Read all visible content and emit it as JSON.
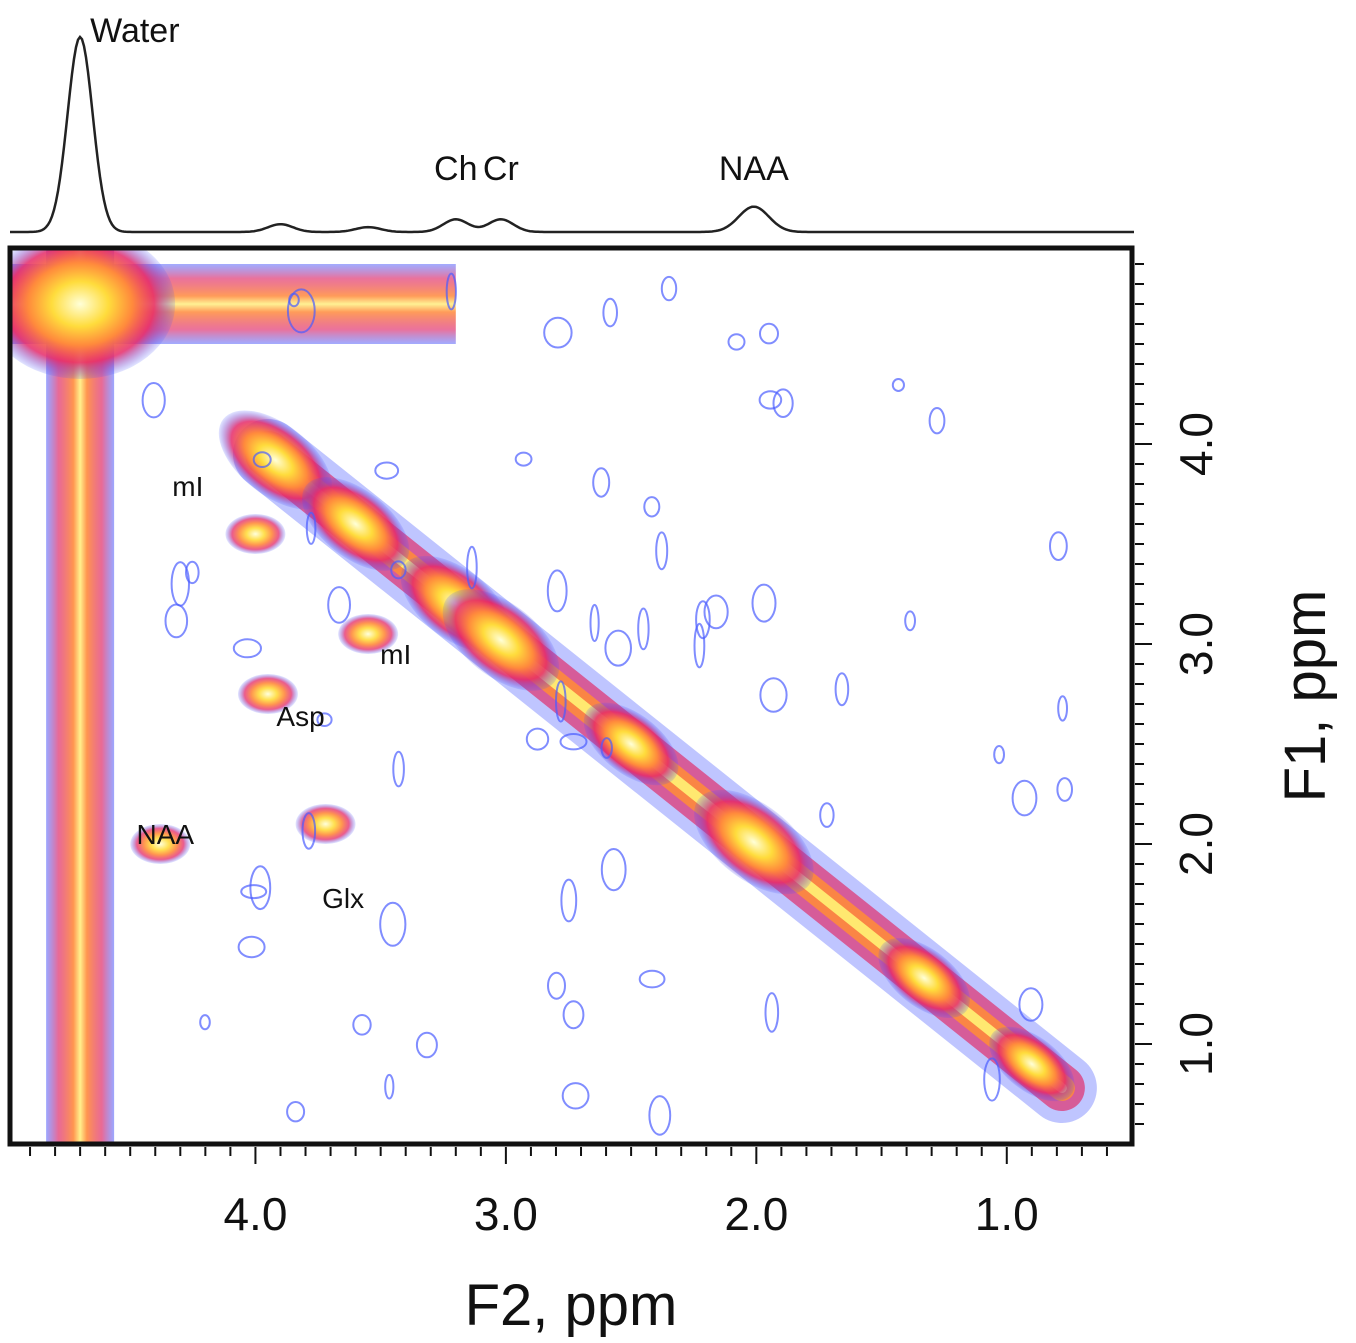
{
  "chart_data": {
    "type": "heatmap",
    "subtype": "2D COSY NMR spectrum with 1D projection",
    "xlabel": "F2, ppm",
    "ylabel": "F1, ppm",
    "x_reversed": true,
    "y_reversed": true,
    "xlim": [
      4.98,
      0.5
    ],
    "ylim": [
      4.98,
      0.5
    ],
    "x_ticks": [
      4.0,
      3.0,
      2.0,
      1.0
    ],
    "x_tick_labels": [
      "4.0",
      "3.0",
      "2.0",
      "1.0"
    ],
    "y_ticks": [
      4.0,
      3.0,
      2.0,
      1.0
    ],
    "y_tick_labels": [
      "4.0",
      "3.0",
      "2.0",
      "1.0"
    ],
    "colormap": [
      "#3a4bff",
      "#e0206a",
      "#ff7a3a",
      "#ffd23a",
      "#ffffcc"
    ],
    "projection": {
      "peaks": [
        {
          "label": "Water",
          "ppm": 4.7,
          "height": 1.0,
          "width": 0.05
        },
        {
          "label": "",
          "ppm": 3.9,
          "height": 0.04,
          "width": 0.05
        },
        {
          "label": "",
          "ppm": 3.55,
          "height": 0.025,
          "width": 0.05
        },
        {
          "label": "Ch",
          "ppm": 3.2,
          "height": 0.065,
          "width": 0.05
        },
        {
          "label": "Cr",
          "ppm": 3.02,
          "height": 0.065,
          "width": 0.05
        },
        {
          "label": "NAA",
          "ppm": 2.01,
          "height": 0.13,
          "width": 0.06
        }
      ]
    },
    "diagonal_peaks": [
      {
        "ppm": 3.92,
        "intensity": 0.9
      },
      {
        "ppm": 3.6,
        "intensity": 0.8
      },
      {
        "ppm": 3.2,
        "intensity": 0.85
      },
      {
        "ppm": 3.02,
        "intensity": 0.95
      },
      {
        "ppm": 2.5,
        "intensity": 0.6
      },
      {
        "ppm": 2.01,
        "intensity": 1.0
      },
      {
        "ppm": 1.33,
        "intensity": 0.55
      },
      {
        "ppm": 0.9,
        "intensity": 0.45
      }
    ],
    "cross_peaks": [
      {
        "label": "mI",
        "f2": 4.0,
        "f1": 3.55
      },
      {
        "label": "mI",
        "f2": 3.55,
        "f1": 3.05
      },
      {
        "label": "Asp",
        "f2": 3.95,
        "f1": 2.75
      },
      {
        "label": "NAA",
        "f2": 4.38,
        "f1": 2.0
      },
      {
        "label": "Glx",
        "f2": 3.72,
        "f1": 2.1
      }
    ],
    "cross_peak_labels": [
      {
        "text": "mI",
        "f2": 4.27,
        "f1": 3.74
      },
      {
        "text": "mI",
        "f2": 3.44,
        "f1": 2.9
      },
      {
        "text": "Asp",
        "f2": 3.82,
        "f1": 2.59
      },
      {
        "text": "NAA",
        "f2": 4.36,
        "f1": 2.0
      },
      {
        "text": "Glx",
        "f2": 3.65,
        "f1": 1.68
      }
    ],
    "projection_labels": [
      "Water",
      "Ch",
      "Cr",
      "NAA"
    ]
  }
}
